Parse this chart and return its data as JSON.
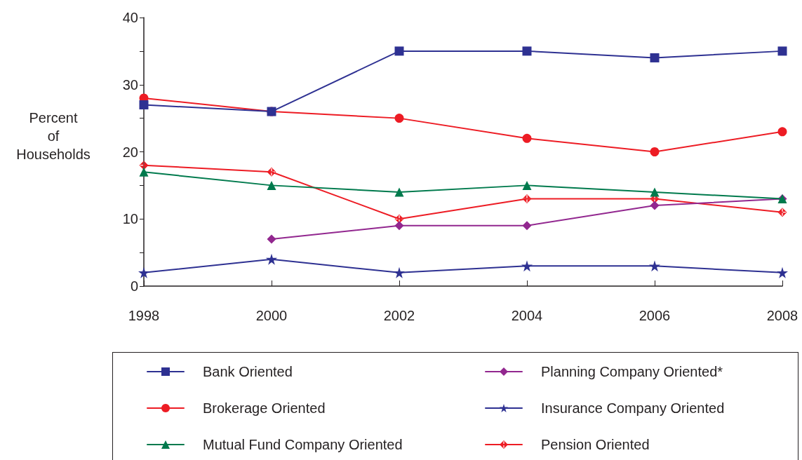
{
  "chart_data": {
    "type": "line",
    "ylabel": "Percent\nof\nHouseholds",
    "x": [
      1998,
      2000,
      2002,
      2004,
      2006,
      2008
    ],
    "xlim": [
      1998,
      2008
    ],
    "xticks": [
      1998,
      2000,
      2002,
      2004,
      2006,
      2008
    ],
    "ylim": [
      0,
      40
    ],
    "yticks": [
      0,
      {
        "value": 5,
        "label": null
      },
      10,
      {
        "value": 15,
        "label": null
      },
      20,
      {
        "value": 25,
        "label": null
      },
      30,
      {
        "value": 35,
        "label": null
      },
      40
    ],
    "grid": false,
    "legend": "bottom",
    "line_style": "solid",
    "series": [
      {
        "name": "Bank Oriented",
        "color": "#2e3192",
        "marker": "square",
        "values": [
          27,
          26,
          35,
          35,
          34,
          35
        ]
      },
      {
        "name": "Brokerage Oriented",
        "color": "#ed1c24",
        "marker": "circle",
        "values": [
          28,
          26,
          25,
          22,
          20,
          23
        ]
      },
      {
        "name": "Mutual Fund Company Oriented",
        "color": "#007a4d",
        "marker": "triangle",
        "values": [
          17,
          15,
          14,
          15,
          14,
          13
        ]
      },
      {
        "name": "Planning Company Oriented*",
        "color": "#92278f",
        "marker": "diamond",
        "values": [
          null,
          7,
          9,
          9,
          12,
          13
        ]
      },
      {
        "name": "Insurance Company Oriented",
        "color": "#2e3192",
        "marker": "star",
        "values": [
          2,
          4,
          2,
          3,
          3,
          2
        ]
      },
      {
        "name": "Pension Oriented",
        "color": "#ed1c24",
        "marker": "cross",
        "values": [
          18,
          17,
          10,
          13,
          13,
          11
        ]
      }
    ]
  }
}
